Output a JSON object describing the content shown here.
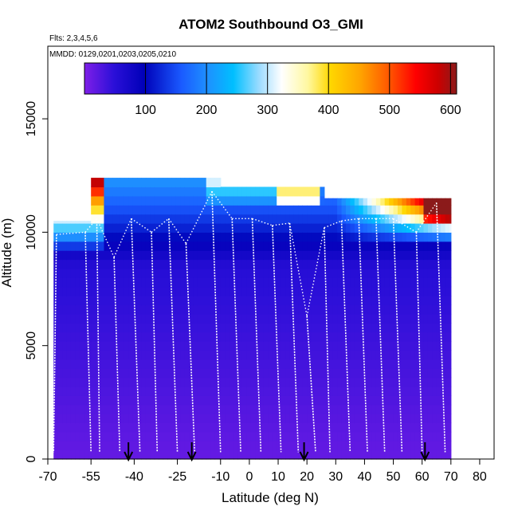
{
  "chart_data": {
    "type": "heatmap",
    "title": "ATOM2 Southbound O3_GMI",
    "flights_label": "Flts: 2,3,4,5,6",
    "dates_label": "MMDD: 0129,0201,0203,0205,0210",
    "xlabel": "Latitude (deg N)",
    "ylabel": "Altitude (m)",
    "xlim": [
      -70,
      85
    ],
    "ylim": [
      0,
      18200
    ],
    "x_ticks": [
      -70,
      -55,
      -40,
      -25,
      -10,
      0,
      10,
      20,
      30,
      40,
      50,
      60,
      70,
      80
    ],
    "x_tick_labels": [
      "-70",
      "-55",
      "-40",
      "-25",
      "-10",
      "0",
      "10",
      "20",
      "30",
      "40",
      "50",
      "60",
      "70",
      "80"
    ],
    "y_ticks": [
      0,
      5000,
      10000,
      15000
    ],
    "y_tick_labels": [
      "0",
      "5000",
      "10000",
      "15000"
    ],
    "colorbar": {
      "range": [
        0,
        610
      ],
      "ticks": [
        100,
        200,
        300,
        400,
        500,
        600
      ],
      "tick_labels": [
        "100",
        "200",
        "300",
        "400",
        "500",
        "600"
      ],
      "colors": [
        "#7f1fe8",
        "#1a0fd8",
        "#0000b0",
        "#1a5aff",
        "#1e90ff",
        "#00bfff",
        "#aee6ff",
        "#ffffff",
        "#fff8a0",
        "#ffd700",
        "#ffa500",
        "#ff5500",
        "#ff0000",
        "#cc0000",
        "#8b1010"
      ]
    },
    "curtain_segments": [
      {
        "lat_min": -68,
        "lat_max": -55,
        "alt_top": 10500
      },
      {
        "lat_min": -55,
        "lat_max": -45,
        "alt_top": 12400
      },
      {
        "lat_min": -45,
        "lat_max": -10,
        "alt_top": 12400
      },
      {
        "lat_min": -10,
        "lat_max": 26,
        "alt_top": 12000
      },
      {
        "lat_min": 26,
        "lat_max": 70,
        "alt_top": 11500
      }
    ],
    "profiles": [
      {
        "lat_top": -67,
        "lat_bottom": -68,
        "alt_top": 9900
      },
      {
        "lat_top": -57,
        "lat_bottom": -55,
        "alt_top": 10000
      },
      {
        "lat_top": -53,
        "lat_bottom": -52,
        "alt_top": 10600
      },
      {
        "lat_top": -47,
        "lat_bottom": -45,
        "alt_top": 8900
      },
      {
        "lat_top": -41,
        "lat_bottom": -38,
        "alt_top": 10600
      },
      {
        "lat_top": -34,
        "lat_bottom": -32,
        "alt_top": 10000
      },
      {
        "lat_top": -28,
        "lat_bottom": -25,
        "alt_top": 10600
      },
      {
        "lat_top": -22,
        "lat_bottom": -19,
        "alt_top": 9500
      },
      {
        "lat_top": -13,
        "lat_bottom": -10,
        "alt_top": 11800
      },
      {
        "lat_top": -6,
        "lat_bottom": -3,
        "alt_top": 10600
      },
      {
        "lat_top": 1,
        "lat_bottom": 4,
        "alt_top": 10600
      },
      {
        "lat_top": 8,
        "lat_bottom": 11,
        "alt_top": 10300
      },
      {
        "lat_top": 14,
        "lat_bottom": 17,
        "alt_top": 10400
      },
      {
        "lat_top": 20,
        "lat_bottom": 23,
        "alt_top": 6300
      },
      {
        "lat_top": 26,
        "lat_bottom": 28,
        "alt_top": 10200
      },
      {
        "lat_top": 32,
        "lat_bottom": 35,
        "alt_top": 10500
      },
      {
        "lat_top": 38,
        "lat_bottom": 41,
        "alt_top": 10600
      },
      {
        "lat_top": 44,
        "lat_bottom": 47,
        "alt_top": 10600
      },
      {
        "lat_top": 50,
        "lat_bottom": 53,
        "alt_top": 10600
      },
      {
        "lat_top": 58,
        "lat_bottom": 60,
        "alt_top": 10000
      },
      {
        "lat_top": 65,
        "lat_bottom": 68,
        "alt_top": 11300
      }
    ],
    "arrows_lat": [
      -42,
      -20,
      19,
      61
    ]
  }
}
